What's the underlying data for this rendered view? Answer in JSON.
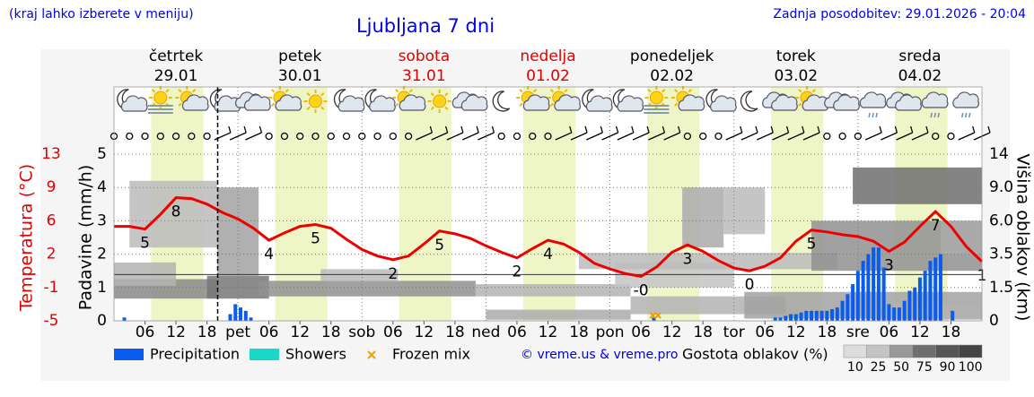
{
  "chart_data": {
    "type": "meteogram",
    "hint": "(kraj lahko izberete v meniju)",
    "title": "Ljubljana 7 dni",
    "updated": "Zadnja posodobitev: 29.01.2026 - 20:04",
    "now_hour": 20.07,
    "days": [
      {
        "name": "četrtek",
        "date": "29.01",
        "color": "#000000"
      },
      {
        "name": "petek",
        "date": "30.01",
        "color": "#000000"
      },
      {
        "name": "sobota",
        "date": "31.01",
        "color": "#e00000"
      },
      {
        "name": "nedelja",
        "date": "01.02",
        "color": "#e00000"
      },
      {
        "name": "ponedeljek",
        "date": "02.02",
        "color": "#000000"
      },
      {
        "name": "torek",
        "date": "03.02",
        "color": "#000000"
      },
      {
        "name": "sreda",
        "date": "04.02",
        "color": "#000000"
      }
    ],
    "xlim": [
      0,
      168
    ],
    "xticks": [
      {
        "value": 6,
        "label": "06"
      },
      {
        "value": 12,
        "label": "12"
      },
      {
        "value": 18,
        "label": "18"
      },
      {
        "value": 24,
        "label": "pet"
      },
      {
        "value": 30,
        "label": "06"
      },
      {
        "value": 36,
        "label": "12"
      },
      {
        "value": 42,
        "label": "18"
      },
      {
        "value": 48,
        "label": "sob"
      },
      {
        "value": 54,
        "label": "06"
      },
      {
        "value": 60,
        "label": "12"
      },
      {
        "value": 66,
        "label": "18"
      },
      {
        "value": 72,
        "label": "ned"
      },
      {
        "value": 78,
        "label": "06"
      },
      {
        "value": 84,
        "label": "12"
      },
      {
        "value": 90,
        "label": "18"
      },
      {
        "value": 96,
        "label": "pon"
      },
      {
        "value": 102,
        "label": "06"
      },
      {
        "value": 108,
        "label": "12"
      },
      {
        "value": 114,
        "label": "18"
      },
      {
        "value": 120,
        "label": "tor"
      },
      {
        "value": 126,
        "label": "06"
      },
      {
        "value": 132,
        "label": "12"
      },
      {
        "value": 138,
        "label": "18"
      },
      {
        "value": 144,
        "label": "sre"
      },
      {
        "value": 150,
        "label": "06"
      },
      {
        "value": 156,
        "label": "12"
      },
      {
        "value": 162,
        "label": "18"
      }
    ],
    "daylight": [
      [
        7.2,
        17.3
      ],
      [
        31.2,
        41.3
      ],
      [
        55.2,
        65.3
      ],
      [
        79.2,
        89.3
      ],
      [
        103.2,
        113.3
      ],
      [
        127.2,
        137.3
      ],
      [
        151.2,
        161.3
      ]
    ],
    "ylabel": "Padavine (mm/h)",
    "ylim": [
      0,
      5
    ],
    "yticks": [
      0,
      1,
      2,
      3,
      4,
      5
    ],
    "grid": true,
    "temp_axis": {
      "label": "Temperatura (°C)",
      "color": "#e00000",
      "lim": [
        -5,
        13
      ],
      "ticks": [
        {
          "value": -5,
          "label": "-5"
        },
        {
          "value": -1.4,
          "label": "-1"
        },
        {
          "value": 2.2,
          "label": "2"
        },
        {
          "value": 5.8,
          "label": "6"
        },
        {
          "value": 9.4,
          "label": "9"
        },
        {
          "value": 13,
          "label": "13"
        }
      ]
    },
    "freezing_level": 0,
    "y2label": "Višina oblakov (km)",
    "y2lim": [
      0,
      14
    ],
    "y2ticks": [
      0,
      1.5,
      3.5,
      {
        "value": 6,
        "label": "6.0"
      },
      {
        "value": 9,
        "label": "9.0"
      },
      14
    ],
    "temperature": {
      "color": "#ee0000",
      "x": [
        0,
        3,
        6,
        9,
        12,
        15,
        18,
        21,
        24,
        27,
        30,
        33,
        36,
        39,
        42,
        45,
        48,
        51,
        54,
        57,
        60,
        63,
        66,
        69,
        72,
        75,
        78,
        81,
        84,
        87,
        90,
        93,
        96,
        99,
        102,
        105,
        108,
        111,
        114,
        117,
        120,
        123,
        126,
        129,
        132,
        135,
        138,
        141,
        144,
        147,
        150,
        153,
        156,
        159,
        162,
        165,
        168
      ],
      "values": [
        5.2,
        5.2,
        4.9,
        6.5,
        8.3,
        8.2,
        7.6,
        6.7,
        6.0,
        5.0,
        3.7,
        4.5,
        5.2,
        5.4,
        5.0,
        3.8,
        2.7,
        2.0,
        1.6,
        2.0,
        3.3,
        4.7,
        4.4,
        3.9,
        3.1,
        2.4,
        1.8,
        2.8,
        3.7,
        3.3,
        2.4,
        1.2,
        0.6,
        0.1,
        -0.2,
        0.8,
        2.4,
        3.2,
        2.5,
        1.5,
        0.7,
        0.4,
        0.9,
        1.8,
        3.6,
        4.8,
        4.6,
        4.3,
        4.1,
        3.6,
        2.5,
        3.5,
        5.2,
        6.8,
        5.2,
        3.0,
        1.4
      ],
      "value_labels": [
        null,
        null,
        "5",
        null,
        "8",
        null,
        null,
        null,
        null,
        null,
        "4",
        null,
        null,
        "5",
        null,
        null,
        null,
        null,
        "2",
        null,
        null,
        "5",
        null,
        null,
        null,
        null,
        "2",
        null,
        "4",
        null,
        null,
        null,
        null,
        null,
        "-0",
        null,
        null,
        "3",
        null,
        null,
        null,
        "0",
        null,
        null,
        null,
        "5",
        null,
        null,
        null,
        null,
        "3",
        null,
        null,
        "7",
        null,
        null,
        "1"
      ]
    },
    "series": [
      {
        "name": "Precipitation",
        "color": "#0a5cf0",
        "x": [
          2,
          22.5,
          23.5,
          24.5,
          25.5,
          26.5,
          104.5,
          128,
          129,
          130,
          131,
          132,
          133,
          134,
          135,
          136,
          137,
          138,
          139,
          140,
          141,
          142,
          143,
          144,
          145,
          146,
          147,
          148,
          149,
          150,
          151,
          152,
          153,
          154,
          155,
          156,
          157,
          158,
          159,
          160,
          162.3
        ],
        "values": [
          0.1,
          0.2,
          0.5,
          0.4,
          0.3,
          0.1,
          0.1,
          0.1,
          0.1,
          0.15,
          0.2,
          0.2,
          0.25,
          0.3,
          0.3,
          0.3,
          0.3,
          0.3,
          0.35,
          0.4,
          0.6,
          0.8,
          1.1,
          1.5,
          1.8,
          2.0,
          2.2,
          2.2,
          1.6,
          0.5,
          0.4,
          0.4,
          0.6,
          0.9,
          1.0,
          1.3,
          1.5,
          1.8,
          1.9,
          2.0,
          0.3
        ]
      },
      {
        "name": "Showers",
        "color": "#1ad8c8"
      },
      {
        "name": "Frozen mix",
        "color": "#f0a000",
        "x": [
          104.3,
          105.3
        ]
      }
    ],
    "clouds": [
      [
        0,
        20,
        1.0,
        2.0,
        60
      ],
      [
        0,
        12,
        1.6,
        3.0,
        35
      ],
      [
        3,
        20,
        4.0,
        10.0,
        30
      ],
      [
        18,
        30,
        1.0,
        2.2,
        70
      ],
      [
        20,
        28,
        2.2,
        9,
        45
      ],
      [
        28,
        70,
        1.1,
        1.9,
        55
      ],
      [
        40,
        55,
        1.9,
        2.6,
        30
      ],
      [
        70,
        100,
        1.1,
        1.7,
        35
      ],
      [
        72,
        100,
        0.05,
        0.5,
        40
      ],
      [
        97,
        120,
        1.5,
        3.0,
        25
      ],
      [
        90,
        140,
        2.6,
        3.6,
        30
      ],
      [
        100,
        130,
        0.3,
        1.1,
        35
      ],
      [
        110,
        118,
        4,
        9,
        40
      ],
      [
        118,
        126,
        5,
        9,
        30
      ],
      [
        122,
        168,
        0.1,
        1.3,
        45
      ],
      [
        135,
        168,
        2.5,
        6,
        55
      ],
      [
        143,
        168,
        7.5,
        12,
        75
      ],
      [
        147,
        168,
        0.05,
        0.8,
        35
      ],
      [
        160,
        168,
        3.5,
        6,
        40
      ]
    ],
    "copyright": "© vreme.us & vreme.pro",
    "cloud_legend": {
      "title": "Gostota oblakov (%)",
      "values": [
        10,
        25,
        50,
        75,
        90,
        100
      ]
    }
  }
}
